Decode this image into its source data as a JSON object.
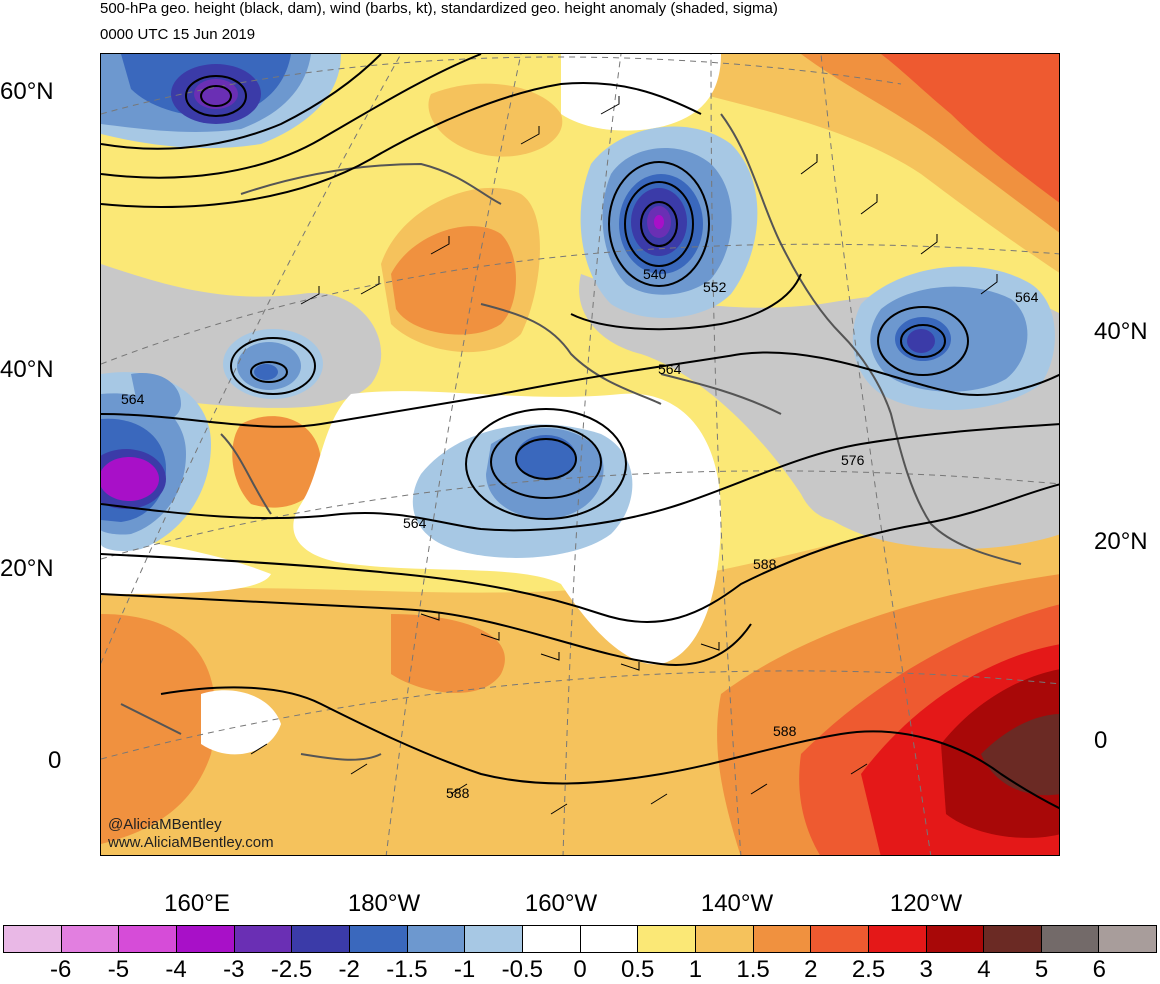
{
  "title": {
    "line1": "500-hPa geo. height (black, dam), wind (barbs, kt), standardized geo. height anomaly (shaded, sigma)",
    "line2": "0000 UTC 15 Jun 2019"
  },
  "credit": {
    "handle": "@AliciaMBentley",
    "url": "www.AliciaMBentley.com"
  },
  "axes": {
    "lat_left": [
      "60°N",
      "40°N",
      "20°N",
      "0"
    ],
    "lat_right": [
      "40°N",
      "20°N",
      "0"
    ],
    "lon_bottom": [
      "160°E",
      "180°W",
      "160°W",
      "140°W",
      "120°W"
    ]
  },
  "contour_labels": [
    "564",
    "540",
    "552",
    "564",
    "564",
    "564",
    "576",
    "588",
    "588",
    "588"
  ],
  "colorbar": {
    "colors": [
      "#e9b8e6",
      "#e27fe0",
      "#d64cd8",
      "#a810c8",
      "#6a2fb4",
      "#3b3ba8",
      "#3a68bd",
      "#6d98cf",
      "#a7c8e4",
      "#ffffff",
      "#ffffff",
      "#fbe876",
      "#f5c25c",
      "#f0913f",
      "#ee5a30",
      "#e41818",
      "#a80808",
      "#6b2a24",
      "#736a69",
      "#a89d9b"
    ],
    "labels": [
      "-6",
      "-5",
      "-4",
      "-3",
      "-2.5",
      "-2",
      "-1.5",
      "-1",
      "-0.5",
      "0",
      "0.5",
      "1",
      "1.5",
      "2",
      "2.5",
      "3",
      "4",
      "5",
      "6"
    ]
  }
}
